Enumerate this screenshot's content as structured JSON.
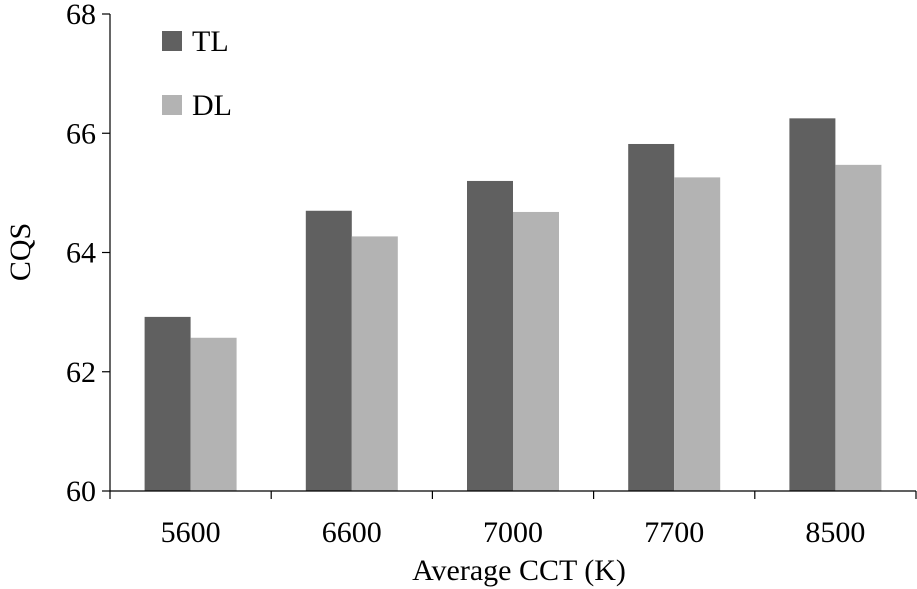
{
  "chart_data": {
    "type": "bar",
    "title": "",
    "xlabel": "Average CCT (K)",
    "ylabel": "CQS",
    "categories": [
      "5600",
      "6600",
      "7000",
      "7700",
      "8500"
    ],
    "ylim": [
      60,
      68
    ],
    "yticks": [
      60,
      62,
      64,
      66,
      68
    ],
    "grid": false,
    "legend_position": "top-left",
    "series": [
      {
        "name": "TL",
        "color": "#606060",
        "values": [
          62.92,
          64.7,
          65.2,
          65.82,
          66.25
        ]
      },
      {
        "name": "DL",
        "color": "#b3b3b3",
        "values": [
          62.57,
          64.27,
          64.68,
          65.26,
          65.47
        ]
      }
    ]
  }
}
